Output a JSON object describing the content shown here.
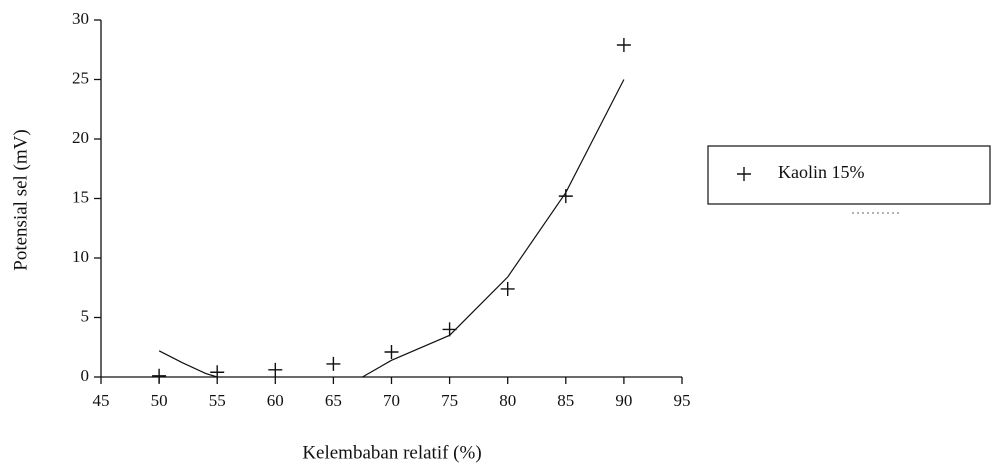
{
  "chart_data": {
    "type": "scatter",
    "x_label": "Kelembaban relatif (%)",
    "y_label": "Potensial sel (mV)",
    "series": [
      {
        "name": "Kaolin 15%",
        "color": "#111111",
        "x": [
          50,
          55,
          60,
          65,
          70,
          75,
          80,
          85,
          90
        ],
        "values": [
          0.1,
          0.4,
          0.6,
          1.1,
          2.1,
          4.0,
          7.4,
          15.2,
          27.9
        ]
      }
    ],
    "trendline": {
      "color": "#111111",
      "x": [
        50,
        52,
        54,
        55,
        61,
        67.5,
        70,
        75,
        80,
        85,
        90
      ],
      "values": [
        2.2,
        1.2,
        0.3,
        0,
        null,
        0,
        1.4,
        3.5,
        8.4,
        15.5,
        25
      ]
    },
    "xlim": [
      45,
      95
    ],
    "xticks": [
      45,
      50,
      55,
      60,
      65,
      70,
      75,
      80,
      85,
      90,
      95
    ],
    "ylim": [
      0,
      30
    ],
    "yticks": [
      0,
      5,
      10,
      15,
      20,
      25,
      30
    ],
    "grid": false,
    "legend": "right"
  }
}
